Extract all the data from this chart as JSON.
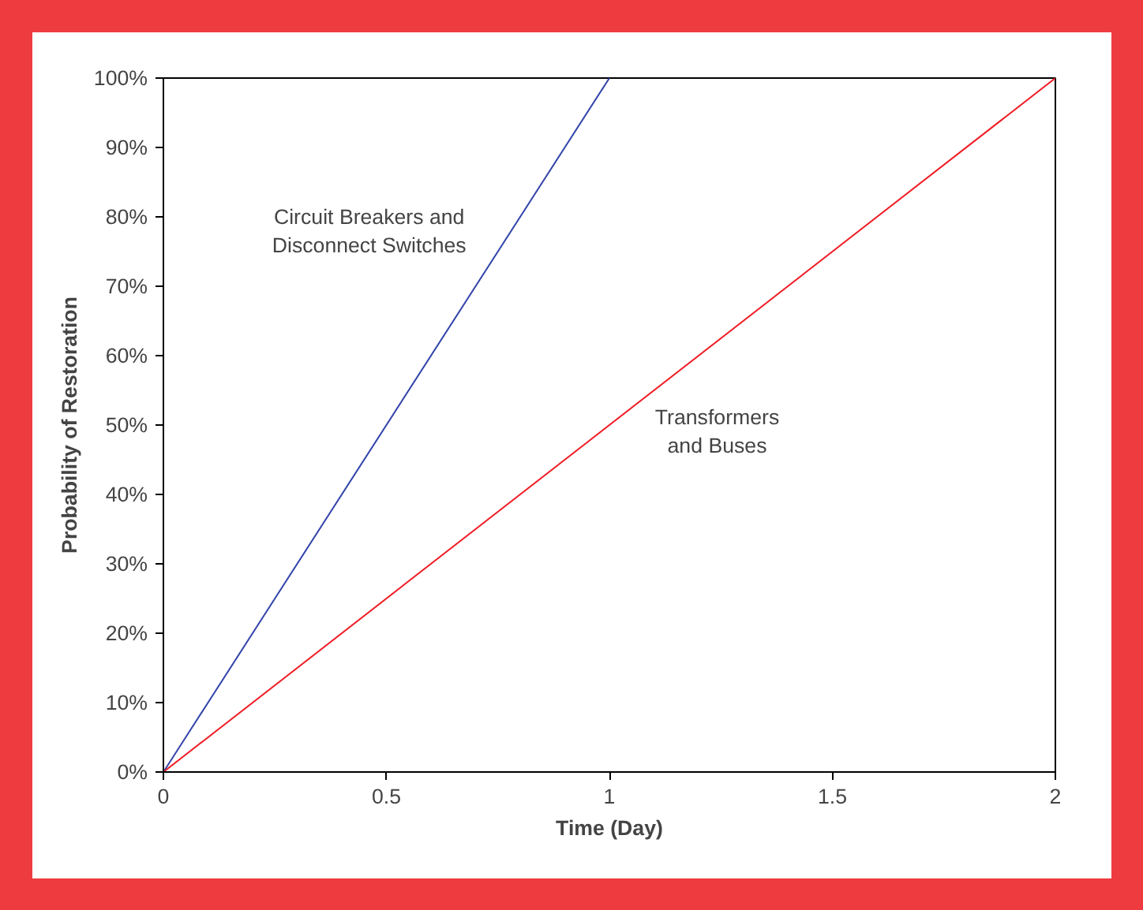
{
  "chart_data": {
    "type": "line",
    "xlabel": "Time (Day)",
    "ylabel": "Probability of Restoration",
    "xlim": [
      0,
      2
    ],
    "ylim": [
      0,
      100
    ],
    "xticks": [
      0,
      0.5,
      1,
      1.5,
      2
    ],
    "yticks": [
      {
        "value": 0,
        "label": "0%"
      },
      {
        "value": 10,
        "label": "10%"
      },
      {
        "value": 20,
        "label": "20%"
      },
      {
        "value": 30,
        "label": "30%"
      },
      {
        "value": 40,
        "label": "40%"
      },
      {
        "value": 50,
        "label": "50%"
      },
      {
        "value": 60,
        "label": "60%"
      },
      {
        "value": 70,
        "label": "70%"
      },
      {
        "value": 80,
        "label": "80%"
      },
      {
        "value": 90,
        "label": "90%"
      },
      {
        "value": 100,
        "label": "100%"
      }
    ],
    "series": [
      {
        "name": "Circuit Breakers and\nDisconnect Switches",
        "color": "#3344aa",
        "x": [
          0,
          1
        ],
        "values": [
          0,
          100
        ]
      },
      {
        "name": "Transformers\nand Buses",
        "color": "#ee1c24",
        "x": [
          0,
          2
        ],
        "values": [
          0,
          100
        ]
      }
    ],
    "grid": false,
    "legend": false,
    "marker": "none",
    "line_style": "solid"
  }
}
